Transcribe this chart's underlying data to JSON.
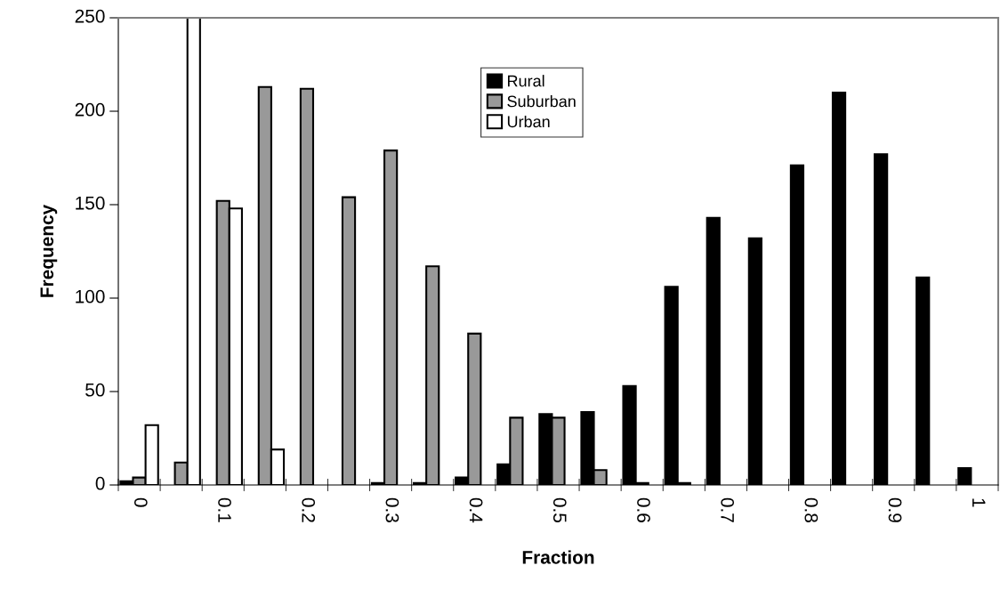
{
  "chart_data": {
    "type": "bar",
    "xlabel": "Fraction",
    "ylabel": "Frequency",
    "categories": [
      "0",
      null,
      "0.1",
      null,
      "0.2",
      null,
      "0.3",
      null,
      "0.4",
      null,
      "0.5",
      null,
      "0.6",
      null,
      "0.7",
      null,
      "0.8",
      null,
      "0.9",
      null,
      "1"
    ],
    "series": [
      {
        "name": "Rural",
        "color": "#000000",
        "values": [
          2,
          0,
          0,
          0,
          0,
          0,
          1,
          1,
          4,
          11,
          38,
          39,
          53,
          106,
          143,
          132,
          171,
          210,
          177,
          111,
          9
        ]
      },
      {
        "name": "Suburban",
        "color": "#999999",
        "values": [
          4,
          12,
          152,
          213,
          212,
          154,
          179,
          117,
          81,
          36,
          36,
          8,
          1,
          1,
          0,
          0,
          0,
          0,
          0,
          0,
          0
        ]
      },
      {
        "name": "Urban",
        "color": "#ffffff",
        "values": [
          32,
          250,
          148,
          19,
          0,
          0,
          0,
          0,
          0,
          0,
          0,
          0,
          0,
          0,
          0,
          0,
          0,
          0,
          0,
          0,
          0
        ]
      }
    ],
    "ylim": [
      0,
      250
    ],
    "yticks": [
      0,
      50,
      100,
      150,
      200,
      250
    ],
    "grid": false,
    "legend": "top"
  }
}
